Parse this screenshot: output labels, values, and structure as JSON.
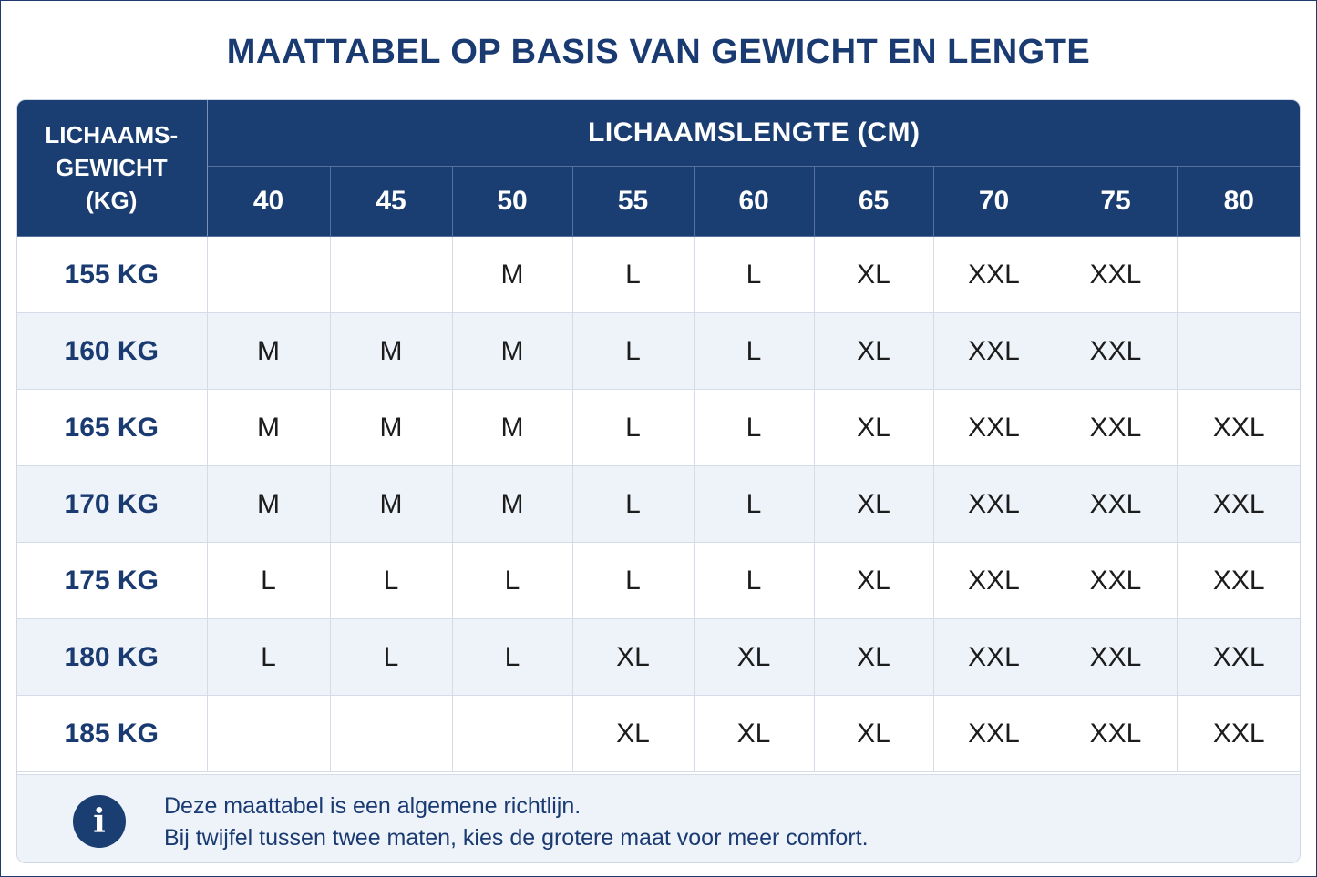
{
  "title": "MAATTABEL OP BASIS VAN GEWICHT EN LENGTE",
  "table": {
    "corner_header": [
      "LICHAAMS-",
      "GEWICHT",
      "(KG)"
    ],
    "group_header": "LICHAAMSLENGTE (CM)",
    "columns": [
      "40",
      "45",
      "50",
      "55",
      "60",
      "65",
      "70",
      "75",
      "80"
    ],
    "rows": [
      {
        "weight": "155 KG",
        "sizes": [
          "",
          "",
          "M",
          "L",
          "L",
          "XL",
          "XXL",
          "XXL",
          ""
        ]
      },
      {
        "weight": "160 KG",
        "sizes": [
          "M",
          "M",
          "M",
          "L",
          "L",
          "XL",
          "XXL",
          "XXL",
          ""
        ]
      },
      {
        "weight": "165 KG",
        "sizes": [
          "M",
          "M",
          "M",
          "L",
          "L",
          "XL",
          "XXL",
          "XXL",
          "XXL"
        ]
      },
      {
        "weight": "170 KG",
        "sizes": [
          "M",
          "M",
          "M",
          "L",
          "L",
          "XL",
          "XXL",
          "XXL",
          "XXL"
        ]
      },
      {
        "weight": "175 KG",
        "sizes": [
          "L",
          "L",
          "L",
          "L",
          "L",
          "XL",
          "XXL",
          "XXL",
          "XXL"
        ]
      },
      {
        "weight": "180 KG",
        "sizes": [
          "L",
          "L",
          "L",
          "XL",
          "XL",
          "XL",
          "XXL",
          "XXL",
          "XXL"
        ]
      },
      {
        "weight": "185 KG",
        "sizes": [
          "",
          "",
          "",
          "XL",
          "XL",
          "XL",
          "XXL",
          "XXL",
          "XXL"
        ]
      }
    ]
  },
  "footer": {
    "icon": "info-icon",
    "icon_glyph": "i",
    "line1": "Deze maattabel is een algemene richtlijn.",
    "line2": "Bij twijfel tussen twee maten, kies de grotere maat voor meer comfort."
  },
  "colors": {
    "header_bg": "#1a3d72",
    "title": "#1a3a72",
    "alt_row": "#eef3f9"
  }
}
